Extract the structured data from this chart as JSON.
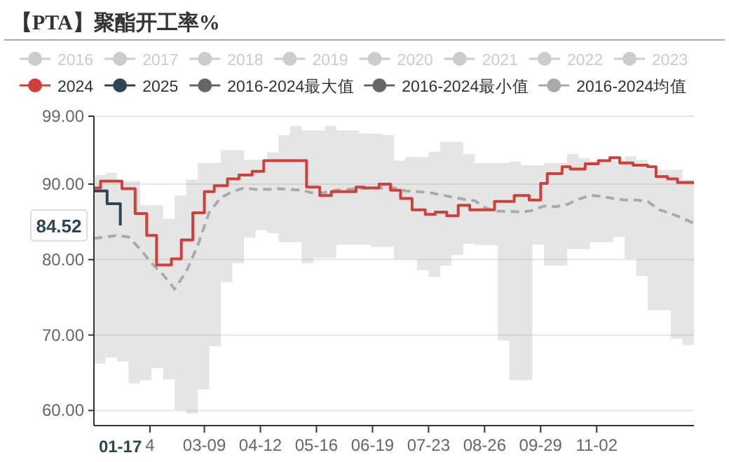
{
  "chart_data": {
    "type": "step",
    "title": "【PTA】聚酯开工率%",
    "legend": "top",
    "grid": "y",
    "xlim": [
      "--01-01",
      "--12-31"
    ],
    "xticks": [
      {
        "value": "--02-04",
        "label": "4"
      },
      {
        "value": "--03-09",
        "label": "03-09"
      },
      {
        "value": "--04-12",
        "label": "04-12"
      },
      {
        "value": "--05-16",
        "label": "05-16"
      },
      {
        "value": "--06-19",
        "label": "06-19"
      },
      {
        "value": "--07-23",
        "label": "07-23"
      },
      {
        "value": "--08-26",
        "label": "08-26"
      },
      {
        "value": "--09-29",
        "label": "09-29"
      },
      {
        "value": "--11-02",
        "label": "11-02"
      }
    ],
    "ylim": [
      58,
      99
    ],
    "yticks": [
      {
        "value": 60,
        "label": "60.00"
      },
      {
        "value": 70,
        "label": "70.00"
      },
      {
        "value": 80,
        "label": "80.00"
      },
      {
        "value": 90,
        "label": "90.00"
      },
      {
        "value": 99,
        "label": "99.00"
      }
    ],
    "x": [
      "--01-01",
      "--01-08",
      "--01-15",
      "--01-22",
      "--01-29",
      "--02-05",
      "--02-12",
      "--02-19",
      "--02-26",
      "--03-05",
      "--03-12",
      "--03-19",
      "--03-26",
      "--04-02",
      "--04-09",
      "--04-16",
      "--04-23",
      "--04-30",
      "--05-07",
      "--05-14",
      "--05-21",
      "--05-28",
      "--06-04",
      "--06-11",
      "--06-18",
      "--06-25",
      "--07-02",
      "--07-09",
      "--07-16",
      "--07-23",
      "--07-30",
      "--08-06",
      "--08-13",
      "--08-20",
      "--08-27",
      "--09-03",
      "--09-10",
      "--09-17",
      "--09-24",
      "--10-01",
      "--10-08",
      "--10-15",
      "--10-22",
      "--10-29",
      "--11-05",
      "--11-12",
      "--11-19",
      "--11-26",
      "--12-03",
      "--12-10",
      "--12-17",
      "--12-24",
      "--12-31"
    ],
    "series": [
      {
        "name": "2016",
        "color": "#cccccc",
        "values": [
          null,
          null,
          null,
          null,
          null,
          null,
          null,
          null,
          null,
          null,
          null,
          null,
          null,
          null,
          null,
          null,
          null,
          null,
          null,
          null,
          null,
          null,
          null,
          null,
          null,
          null,
          null,
          null,
          null,
          null,
          null,
          null,
          null,
          null,
          null,
          null,
          null,
          null,
          null,
          null,
          null,
          null,
          null,
          null,
          null,
          null,
          null,
          null,
          null,
          null,
          null,
          null,
          null
        ]
      },
      {
        "name": "2017",
        "color": "#cccccc",
        "values": [
          null,
          null,
          null,
          null,
          null,
          null,
          null,
          null,
          null,
          null,
          null,
          null,
          null,
          null,
          null,
          null,
          null,
          null,
          null,
          null,
          null,
          null,
          null,
          null,
          null,
          null,
          null,
          null,
          null,
          null,
          null,
          null,
          null,
          null,
          null,
          null,
          null,
          null,
          null,
          null,
          null,
          null,
          null,
          null,
          null,
          null,
          null,
          null,
          null,
          null,
          null,
          null,
          null
        ]
      },
      {
        "name": "2018",
        "color": "#cccccc",
        "values": [
          null,
          null,
          null,
          null,
          null,
          null,
          null,
          null,
          null,
          null,
          null,
          null,
          null,
          null,
          null,
          null,
          null,
          null,
          null,
          null,
          null,
          null,
          null,
          null,
          null,
          null,
          null,
          null,
          null,
          null,
          null,
          null,
          null,
          null,
          null,
          null,
          null,
          null,
          null,
          null,
          null,
          null,
          null,
          null,
          null,
          null,
          null,
          null,
          null,
          null,
          null,
          null,
          null
        ]
      },
      {
        "name": "2019",
        "color": "#cccccc",
        "values": [
          null,
          null,
          null,
          null,
          null,
          null,
          null,
          null,
          null,
          null,
          null,
          null,
          null,
          null,
          null,
          null,
          null,
          null,
          null,
          null,
          null,
          null,
          null,
          null,
          null,
          null,
          null,
          null,
          null,
          null,
          null,
          null,
          null,
          null,
          null,
          null,
          null,
          null,
          null,
          null,
          null,
          null,
          null,
          null,
          null,
          null,
          null,
          null,
          null,
          null,
          null,
          null,
          null
        ]
      },
      {
        "name": "2020",
        "color": "#cccccc",
        "values": [
          null,
          null,
          null,
          null,
          null,
          null,
          null,
          null,
          null,
          null,
          null,
          null,
          null,
          null,
          null,
          null,
          null,
          null,
          null,
          null,
          null,
          null,
          null,
          null,
          null,
          null,
          null,
          null,
          null,
          null,
          null,
          null,
          null,
          null,
          null,
          null,
          null,
          null,
          null,
          null,
          null,
          null,
          null,
          null,
          null,
          null,
          null,
          null,
          null,
          null,
          null,
          null,
          null
        ]
      },
      {
        "name": "2021",
        "color": "#cccccc",
        "values": [
          null,
          null,
          null,
          null,
          null,
          null,
          null,
          null,
          null,
          null,
          null,
          null,
          null,
          null,
          null,
          null,
          null,
          null,
          null,
          null,
          null,
          null,
          null,
          null,
          null,
          null,
          null,
          null,
          null,
          null,
          null,
          null,
          null,
          null,
          null,
          null,
          null,
          null,
          null,
          null,
          null,
          null,
          null,
          null,
          null,
          null,
          null,
          null,
          null,
          null,
          null,
          null,
          null
        ]
      },
      {
        "name": "2022",
        "color": "#cccccc",
        "values": [
          null,
          null,
          null,
          null,
          null,
          null,
          null,
          null,
          null,
          null,
          null,
          null,
          null,
          null,
          null,
          null,
          null,
          null,
          null,
          null,
          null,
          null,
          null,
          null,
          null,
          null,
          null,
          null,
          null,
          null,
          null,
          null,
          null,
          null,
          null,
          null,
          null,
          null,
          null,
          null,
          null,
          null,
          null,
          null,
          null,
          null,
          null,
          null,
          null,
          null,
          null,
          null,
          null
        ]
      },
      {
        "name": "2023",
        "color": "#cccccc",
        "values": [
          null,
          null,
          null,
          null,
          null,
          null,
          null,
          null,
          null,
          null,
          null,
          null,
          null,
          null,
          null,
          null,
          null,
          null,
          null,
          null,
          null,
          null,
          null,
          null,
          null,
          null,
          null,
          null,
          null,
          null,
          null,
          null,
          null,
          null,
          null,
          null,
          null,
          null,
          null,
          null,
          null,
          null,
          null,
          null,
          null,
          null,
          null,
          null,
          null,
          null,
          null,
          null,
          null
        ]
      },
      {
        "name": "2024",
        "color": "#d0403a",
        "x": [
          "--01-01",
          "--01-05",
          "--01-18",
          "--01-26",
          "--02-02",
          "--02-08",
          "--02-17",
          "--02-23",
          "--03-02",
          "--03-09",
          "--03-15",
          "--03-23",
          "--03-30",
          "--04-07",
          "--04-14",
          "--05-10",
          "--05-18",
          "--05-25",
          "--06-09",
          "--06-14",
          "--06-23",
          "--06-30",
          "--07-06",
          "--07-13",
          "--07-21",
          "--07-27",
          "--08-03",
          "--08-10",
          "--08-17",
          "--09-01",
          "--09-13",
          "--09-22",
          "--09-29",
          "--10-03",
          "--10-12",
          "--10-17",
          "--10-26",
          "--11-03",
          "--11-10",
          "--11-16",
          "--11-24",
          "--12-03",
          "--12-08",
          "--12-15",
          "--12-21",
          "--12-31"
        ],
        "values": [
          89.5,
          90.4,
          89.4,
          86.1,
          83.2,
          79.3,
          80.1,
          82.6,
          86.2,
          89.0,
          89.8,
          90.7,
          91.2,
          91.7,
          93.1,
          89.6,
          88.5,
          89.0,
          89.6,
          89.5,
          90.0,
          89.2,
          88.1,
          86.6,
          86.0,
          86.3,
          85.8,
          87.2,
          86.6,
          87.7,
          88.5,
          87.9,
          90.1,
          91.4,
          92.3,
          92.0,
          92.7,
          93.1,
          93.5,
          92.8,
          92.5,
          92.3,
          91.0,
          90.7,
          90.2,
          90.2
        ]
      },
      {
        "name": "2025",
        "color": "#2f4554",
        "x": [
          "--01-01",
          "--01-09",
          "--01-17"
        ],
        "values": [
          89.1,
          87.4,
          84.52
        ]
      },
      {
        "name": "2016-2024最大值",
        "color": "#666666",
        "values": [
          null,
          null,
          null,
          null,
          null,
          null,
          null,
          null,
          null,
          null,
          null,
          null,
          null,
          null,
          null,
          null,
          null,
          null,
          null,
          null,
          null,
          null,
          null,
          null,
          null,
          null,
          null,
          null,
          null,
          null,
          null,
          null,
          null,
          null,
          null,
          null,
          null,
          null,
          null,
          null,
          null,
          null,
          null,
          null,
          null,
          null,
          null,
          null,
          null,
          null,
          null,
          null,
          null
        ]
      },
      {
        "name": "2016-2024最小值",
        "color": "#666666",
        "values": [
          null,
          null,
          null,
          null,
          null,
          null,
          null,
          null,
          null,
          null,
          null,
          null,
          null,
          null,
          null,
          null,
          null,
          null,
          null,
          null,
          null,
          null,
          null,
          null,
          null,
          null,
          null,
          null,
          null,
          null,
          null,
          null,
          null,
          null,
          null,
          null,
          null,
          null,
          null,
          null,
          null,
          null,
          null,
          null,
          null,
          null,
          null,
          null,
          null,
          null,
          null,
          null,
          null
        ]
      },
      {
        "name": "2016-2024均值",
        "color": "#aaaaaa",
        "type": "line",
        "line_style": "dashed",
        "values": [
          82.8,
          83.0,
          83.2,
          83.0,
          81.4,
          79.5,
          78.0,
          76.1,
          78.4,
          81.9,
          86.3,
          88.2,
          89.0,
          89.5,
          89.3,
          89.3,
          89.4,
          89.3,
          89.2,
          88.8,
          88.9,
          89.2,
          89.3,
          89.4,
          89.5,
          89.5,
          89.5,
          89.1,
          89.0,
          88.9,
          88.6,
          88.3,
          88.0,
          87.8,
          86.8,
          86.4,
          86.4,
          86.3,
          86.5,
          87.1,
          87.0,
          87.3,
          88.0,
          88.5,
          88.4,
          88.1,
          87.9,
          87.9,
          87.7,
          86.6,
          86.1,
          85.5,
          84.8
        ],
        "upper": [
          91.2,
          91.5,
          90.4,
          90.4,
          87.2,
          87.2,
          85.4,
          88.5,
          90.6,
          92.8,
          92.8,
          94.5,
          94.5,
          93.2,
          93.2,
          94.2,
          96.5,
          97.7,
          97.1,
          97.1,
          97.7,
          97.1,
          97.1,
          96.7,
          96.7,
          96.5,
          93.1,
          93.6,
          93.6,
          94.3,
          95.6,
          95.6,
          94.0,
          92.8,
          92.8,
          92.8,
          93.0,
          92.5,
          92.5,
          92.8,
          92.8,
          94.0,
          93.4,
          93.1,
          93.1,
          93.1,
          93.7,
          93.2,
          91.9,
          91.9,
          91.9,
          90.6,
          90.6
        ],
        "lower": [
          66.2,
          67.0,
          66.5,
          63.6,
          64.0,
          65.6,
          64.1,
          60.1,
          59.6,
          62.8,
          68.5,
          77.0,
          79.5,
          82.9,
          83.9,
          83.5,
          82.3,
          82.3,
          79.5,
          80.2,
          80.2,
          82.0,
          82.0,
          82.0,
          81.7,
          81.7,
          80.1,
          80.1,
          78.6,
          77.7,
          79.2,
          80.6,
          82.1,
          81.9,
          81.9,
          69.3,
          64.0,
          64.0,
          82.0,
          79.2,
          79.2,
          81.4,
          81.4,
          82.3,
          82.3,
          83.0,
          80.1,
          77.8,
          73.3,
          73.3,
          69.5,
          68.7,
          66.9
        ]
      }
    ],
    "annotations": [
      "84.52",
      "01-17"
    ]
  }
}
